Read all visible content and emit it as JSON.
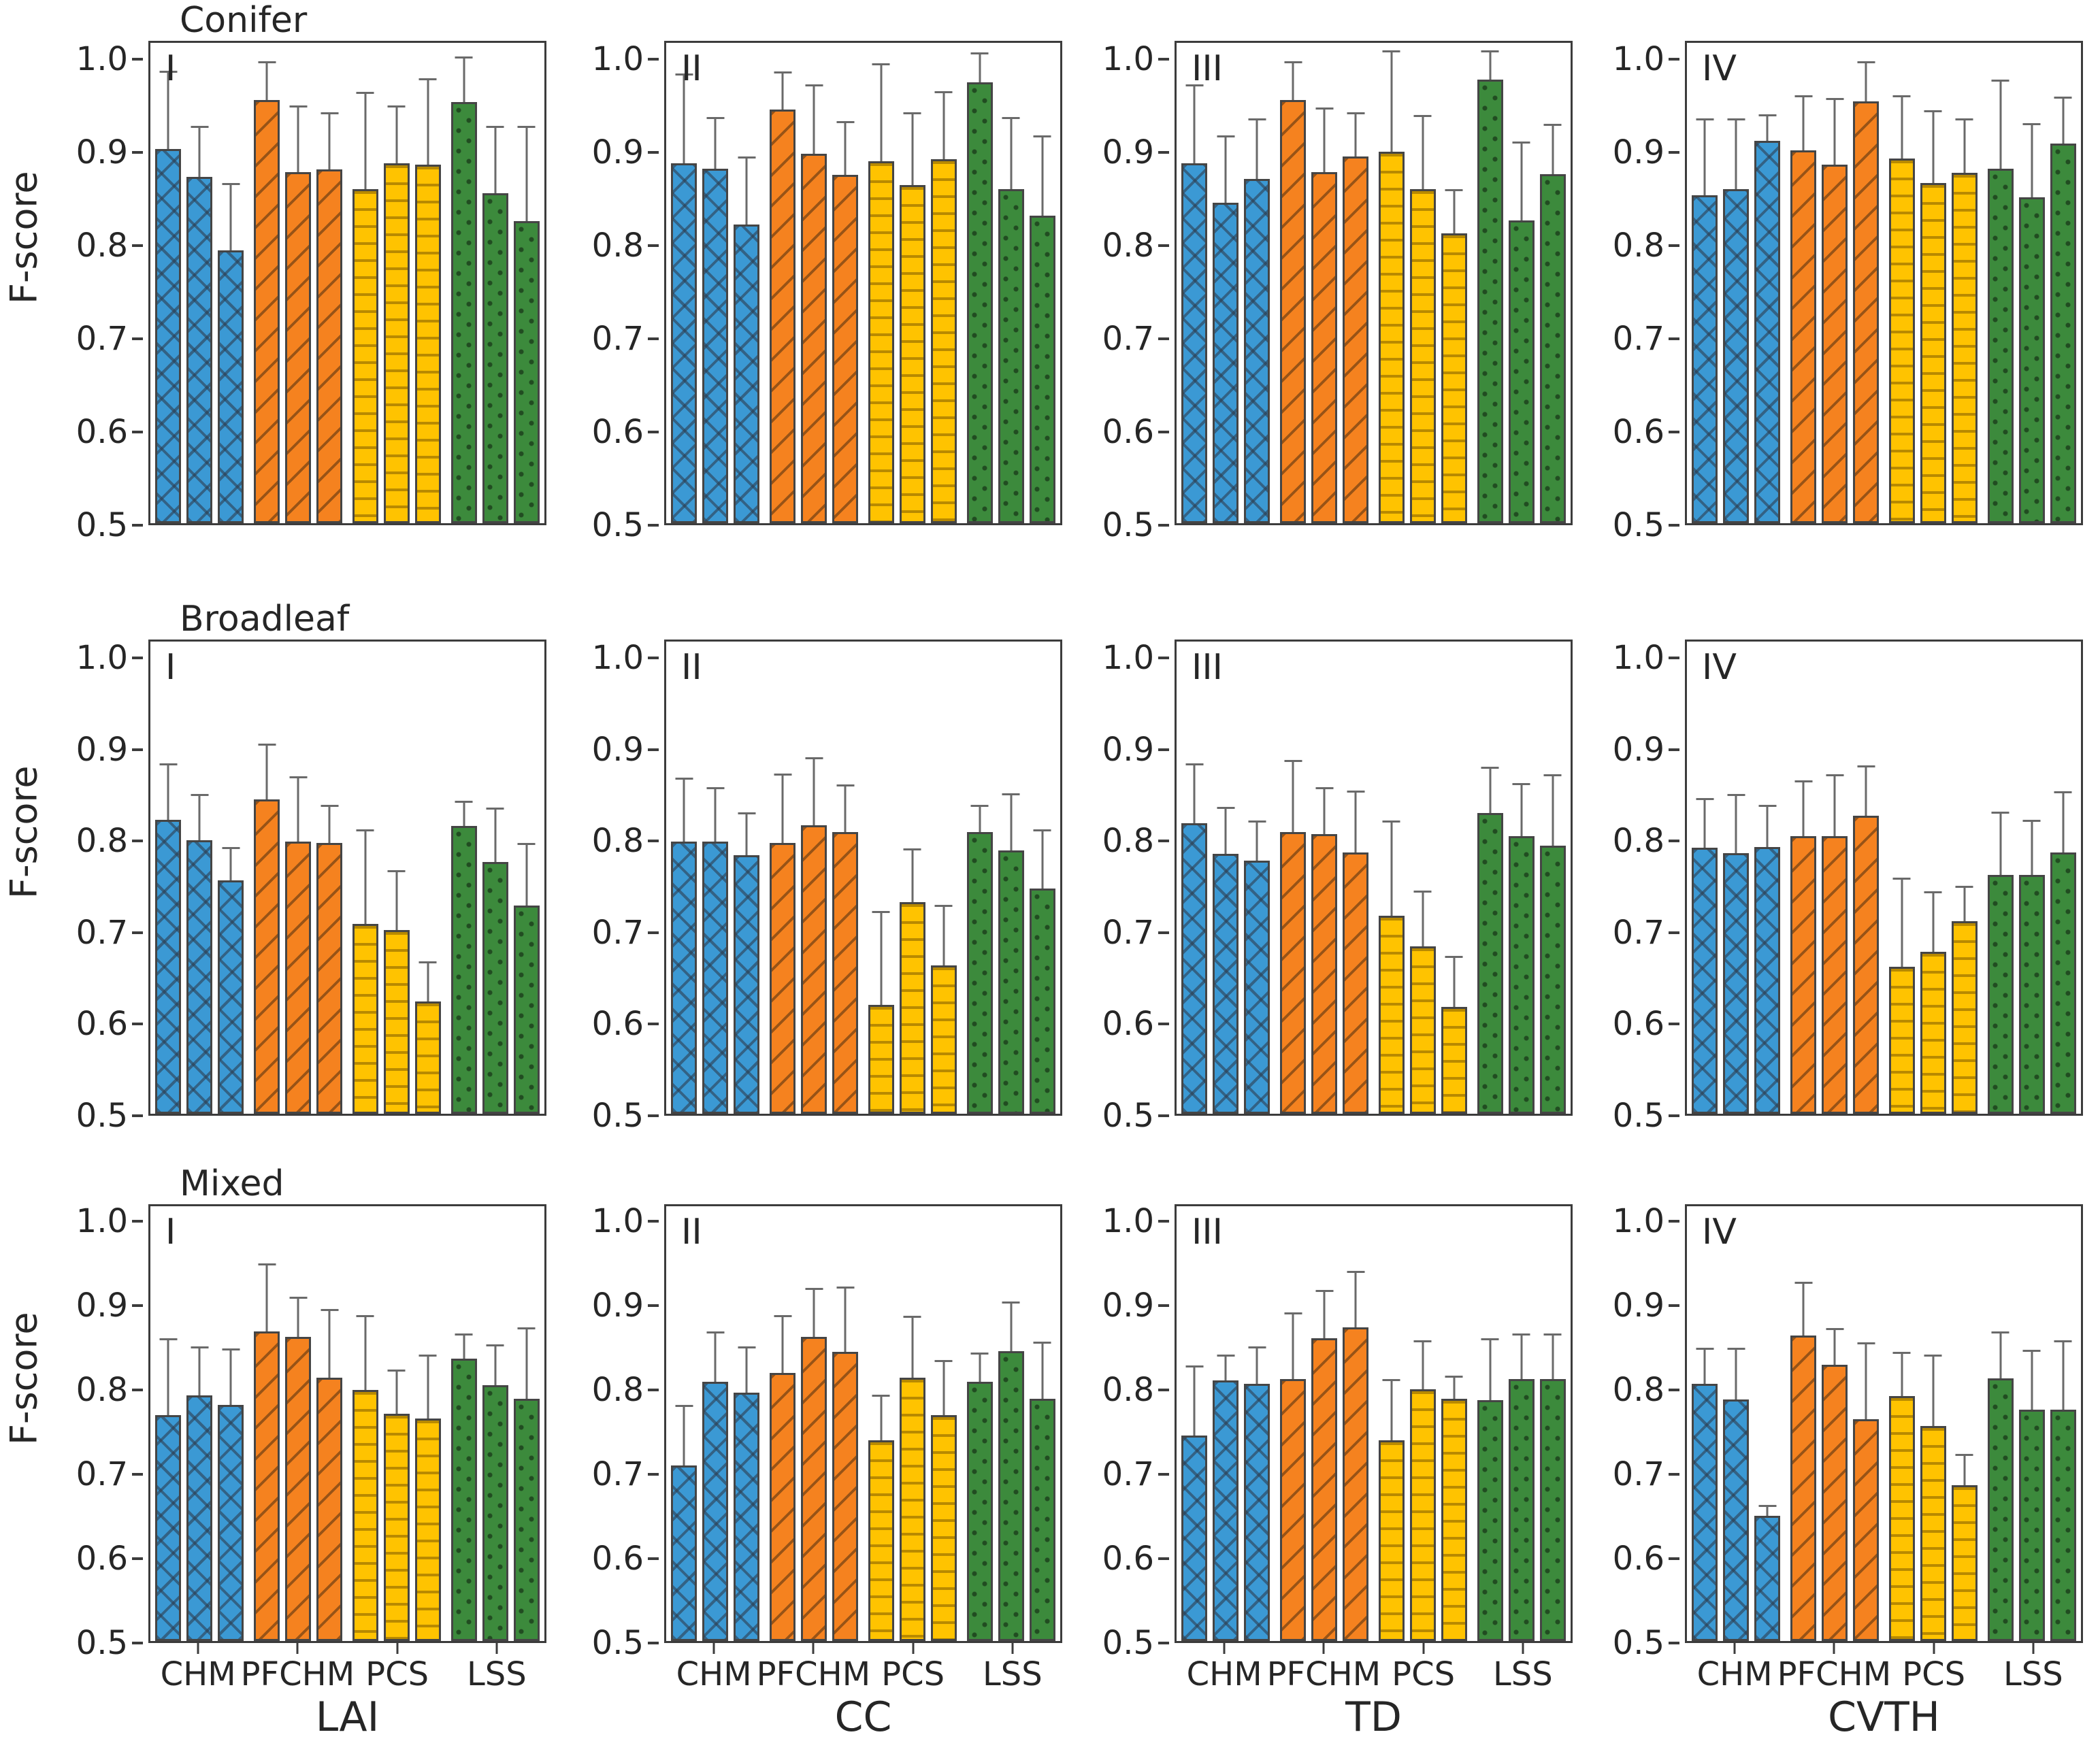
{
  "figure": {
    "ylabel": "F-score",
    "row_titles": [
      "Conifer",
      "Broadleaf",
      "Mixed"
    ],
    "col_labels": [
      "LAI",
      "CC",
      "TD",
      "CVTH"
    ],
    "panel_labels": [
      "I",
      "II",
      "III",
      "IV"
    ],
    "group_labels": [
      "CHM",
      "PFCHM",
      "PCS",
      "LSS"
    ],
    "colors": {
      "CHM": "#3b99d4",
      "PFCHM": "#f5821f",
      "PCS": "#ffc300",
      "LSS": "#3c8a3c"
    },
    "hatches": {
      "CHM": "crosshatch-x",
      "PFCHM": "diagonal-slash",
      "PCS": "horizontal-lines",
      "LSS": "dots"
    }
  },
  "chart_data": {
    "type": "bar",
    "title": "",
    "xlabel_groups": [
      "CHM",
      "PFCHM",
      "PCS",
      "LSS"
    ],
    "ylabel": "F-score",
    "ylim": [
      0.5,
      1.02
    ],
    "yticks": [
      0.5,
      0.6,
      0.7,
      0.8,
      0.9,
      1.0
    ],
    "grid": false,
    "legend": "none",
    "bars_per_group": 3,
    "error_bars": "upper",
    "panels": [
      {
        "row": "Conifer",
        "col": "LAI",
        "label": "I",
        "values": [
          [
            0.905,
            0.875,
            0.795
          ],
          [
            0.958,
            0.88,
            0.883
          ],
          [
            0.862,
            0.89,
            0.888
          ],
          [
            0.956,
            0.857,
            0.827
          ]
        ],
        "errors": [
          [
            0.085,
            0.055,
            0.073
          ],
          [
            0.042,
            0.072,
            0.062
          ],
          [
            0.105,
            0.062,
            0.094
          ],
          [
            0.049,
            0.073,
            0.103
          ]
        ]
      },
      {
        "row": "Conifer",
        "col": "CC",
        "label": "II",
        "values": [
          [
            0.89,
            0.884,
            0.823
          ],
          [
            0.948,
            0.9,
            0.877
          ],
          [
            0.892,
            0.866,
            0.894
          ],
          [
            0.977,
            0.862,
            0.833
          ]
        ],
        "errors": [
          [
            0.097,
            0.056,
            0.074
          ],
          [
            0.041,
            0.075,
            0.058
          ],
          [
            0.106,
            0.079,
            0.074
          ],
          [
            0.033,
            0.078,
            0.087
          ]
        ]
      },
      {
        "row": "Conifer",
        "col": "TD",
        "label": "III",
        "values": [
          [
            0.89,
            0.847,
            0.873
          ],
          [
            0.958,
            0.88,
            0.897
          ],
          [
            0.902,
            0.862,
            0.814
          ],
          [
            0.98,
            0.828,
            0.878
          ]
        ],
        "errors": [
          [
            0.085,
            0.073,
            0.065
          ],
          [
            0.042,
            0.07,
            0.048
          ],
          [
            0.11,
            0.08,
            0.048
          ],
          [
            0.032,
            0.085,
            0.054
          ]
        ]
      },
      {
        "row": "Conifer",
        "col": "CVTH",
        "label": "IV",
        "values": [
          [
            0.855,
            0.862,
            0.914
          ],
          [
            0.904,
            0.888,
            0.957
          ],
          [
            0.895,
            0.868,
            0.879
          ],
          [
            0.884,
            0.853,
            0.911
          ]
        ],
        "errors": [
          [
            0.083,
            0.076,
            0.029
          ],
          [
            0.059,
            0.072,
            0.043
          ],
          [
            0.068,
            0.079,
            0.059
          ],
          [
            0.096,
            0.08,
            0.051
          ]
        ]
      },
      {
        "row": "Broadleaf",
        "col": "LAI",
        "label": "I",
        "values": [
          [
            0.824,
            0.801,
            0.757
          ],
          [
            0.846,
            0.8,
            0.798
          ],
          [
            0.709,
            0.702,
            0.624
          ],
          [
            0.817,
            0.777,
            0.729
          ]
        ],
        "errors": [
          [
            0.062,
            0.051,
            0.037
          ],
          [
            0.062,
            0.072,
            0.042
          ],
          [
            0.104,
            0.066,
            0.044
          ],
          [
            0.028,
            0.06,
            0.069
          ]
        ]
      },
      {
        "row": "Broadleaf",
        "col": "CC",
        "label": "II",
        "values": [
          [
            0.8,
            0.8,
            0.785
          ],
          [
            0.798,
            0.818,
            0.81
          ],
          [
            0.62,
            0.733,
            0.663
          ],
          [
            0.81,
            0.79,
            0.748
          ]
        ],
        "errors": [
          [
            0.07,
            0.06,
            0.047
          ],
          [
            0.077,
            0.075,
            0.053
          ],
          [
            0.103,
            0.059,
            0.067
          ],
          [
            0.03,
            0.063,
            0.065
          ]
        ]
      },
      {
        "row": "Broadleaf",
        "col": "TD",
        "label": "III",
        "values": [
          [
            0.82,
            0.786,
            0.779
          ],
          [
            0.81,
            0.808,
            0.788
          ],
          [
            0.718,
            0.684,
            0.618
          ],
          [
            0.831,
            0.806,
            0.795
          ]
        ],
        "errors": [
          [
            0.066,
            0.052,
            0.044
          ],
          [
            0.08,
            0.052,
            0.068
          ],
          [
            0.105,
            0.062,
            0.056
          ],
          [
            0.051,
            0.058,
            0.079
          ]
        ]
      },
      {
        "row": "Broadleaf",
        "col": "CVTH",
        "label": "IV",
        "values": [
          [
            0.793,
            0.787,
            0.794
          ],
          [
            0.806,
            0.806,
            0.828
          ],
          [
            0.662,
            0.678,
            0.712
          ],
          [
            0.763,
            0.763,
            0.788
          ]
        ],
        "errors": [
          [
            0.055,
            0.065,
            0.046
          ],
          [
            0.061,
            0.068,
            0.056
          ],
          [
            0.098,
            0.067,
            0.039
          ],
          [
            0.07,
            0.061,
            0.067
          ]
        ]
      },
      {
        "row": "Mixed",
        "col": "LAI",
        "label": "I",
        "values": [
          [
            0.77,
            0.794,
            0.782
          ],
          [
            0.87,
            0.864,
            0.815
          ],
          [
            0.8,
            0.772,
            0.766
          ],
          [
            0.838,
            0.806,
            0.79
          ]
        ],
        "errors": [
          [
            0.092,
            0.058,
            0.068
          ],
          [
            0.082,
            0.048,
            0.082
          ],
          [
            0.09,
            0.053,
            0.077
          ],
          [
            0.03,
            0.049,
            0.085
          ]
        ]
      },
      {
        "row": "Mixed",
        "col": "CC",
        "label": "II",
        "values": [
          [
            0.71,
            0.81,
            0.797
          ],
          [
            0.821,
            0.864,
            0.846
          ],
          [
            0.74,
            0.815,
            0.77
          ],
          [
            0.81,
            0.847,
            0.79
          ]
        ],
        "errors": [
          [
            0.072,
            0.06,
            0.055
          ],
          [
            0.069,
            0.058,
            0.078
          ],
          [
            0.055,
            0.074,
            0.066
          ],
          [
            0.035,
            0.059,
            0.068
          ]
        ]
      },
      {
        "row": "Mixed",
        "col": "TD",
        "label": "III",
        "values": [
          [
            0.746,
            0.812,
            0.808
          ],
          [
            0.813,
            0.862,
            0.875
          ],
          [
            0.74,
            0.801,
            0.79
          ],
          [
            0.788,
            0.813,
            0.813
          ]
        ],
        "errors": [
          [
            0.084,
            0.031,
            0.044
          ],
          [
            0.08,
            0.058,
            0.068
          ],
          [
            0.073,
            0.059,
            0.027
          ],
          [
            0.074,
            0.055,
            0.055
          ]
        ]
      },
      {
        "row": "Mixed",
        "col": "CVTH",
        "label": "IV",
        "values": [
          [
            0.808,
            0.789,
            0.65
          ],
          [
            0.865,
            0.83,
            0.765
          ],
          [
            0.793,
            0.757,
            0.686
          ],
          [
            0.814,
            0.777,
            0.777
          ]
        ],
        "errors": [
          [
            0.043,
            0.062,
            0.013
          ],
          [
            0.065,
            0.044,
            0.092
          ],
          [
            0.053,
            0.086,
            0.038
          ],
          [
            0.056,
            0.071,
            0.083
          ]
        ]
      }
    ]
  }
}
